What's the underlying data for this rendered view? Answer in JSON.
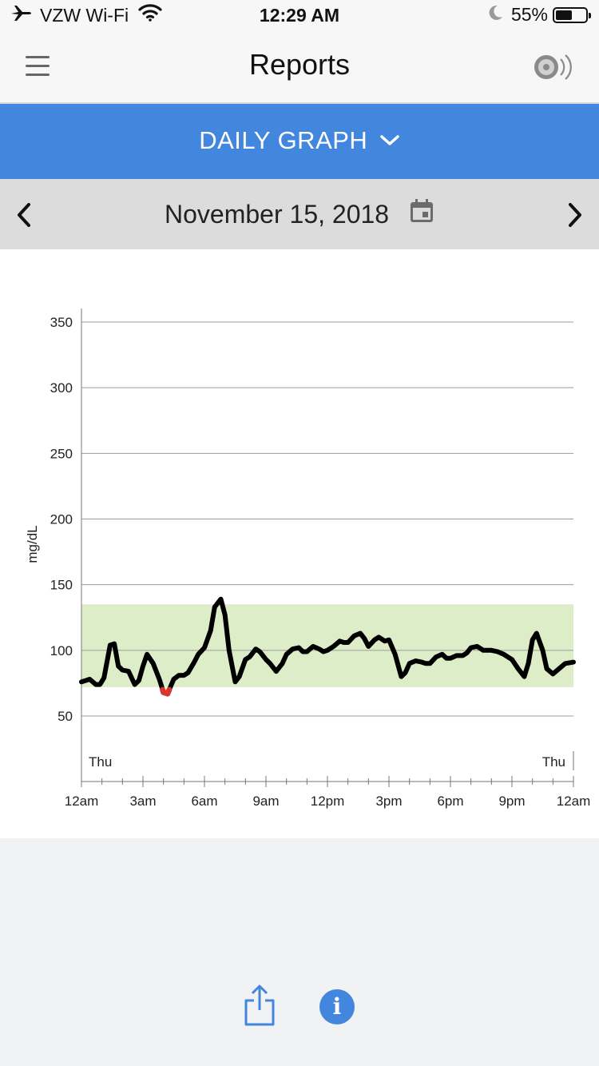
{
  "status_bar": {
    "carrier": "VZW Wi-Fi",
    "time": "12:29 AM",
    "battery": "55%",
    "battery_level": 0.55
  },
  "header": {
    "title": "Reports"
  },
  "mode": {
    "label": "DAILY GRAPH"
  },
  "date_nav": {
    "date": "November 15, 2018"
  },
  "colors": {
    "accent": "#4287dd",
    "target_range": "#dcedc8",
    "line": "#000000",
    "low": "#d9362b"
  },
  "icons": {
    "menu": "hamburger-icon",
    "sound": "speaker-icon",
    "calendar": "calendar-icon",
    "share": "share-icon",
    "info": "info-icon"
  },
  "chart_data": {
    "type": "line",
    "ylabel": "mg/dL",
    "xlabel": "",
    "yticks": [
      50,
      100,
      150,
      200,
      250,
      300,
      350
    ],
    "ylim": [
      0,
      360
    ],
    "xlim": [
      0,
      24
    ],
    "xticks": [
      "12am",
      "3am",
      "6am",
      "9am",
      "12pm",
      "3pm",
      "6pm",
      "9pm",
      "12am"
    ],
    "day_labels": [
      "Thu",
      "Thu"
    ],
    "target_range": [
      72,
      135
    ],
    "low_threshold": 70,
    "grid": true,
    "series": [
      {
        "x": [
          0,
          0.4,
          0.7,
          0.9,
          1.1,
          1.4,
          1.6,
          1.8,
          2.0,
          2.3,
          2.6,
          2.8,
          3.0,
          3.2,
          3.5,
          3.8,
          4.0,
          4.2,
          4.5,
          4.75,
          5.0,
          5.2,
          5.5,
          5.7,
          6.0,
          6.3,
          6.5,
          6.8,
          7.0,
          7.2,
          7.5,
          7.7,
          8.0,
          8.2,
          8.5,
          8.7,
          9.0,
          9.2,
          9.5,
          9.8,
          10.0,
          10.3,
          10.6,
          10.8,
          11.0,
          11.3,
          11.6,
          11.8,
          12.0,
          12.3,
          12.6,
          12.8,
          13.0,
          13.3,
          13.6,
          13.8,
          14.0,
          14.3,
          14.5,
          14.8,
          15.0,
          15.3,
          15.6,
          15.8,
          16.0,
          16.3,
          16.6,
          16.8,
          17.0,
          17.3,
          17.6,
          17.8,
          18.0,
          18.3,
          18.6,
          18.8,
          19.0,
          19.3,
          19.6,
          19.8,
          20.0,
          20.3,
          20.6,
          20.8,
          21.0,
          21.3,
          21.6,
          21.8,
          22.0,
          22.2,
          22.5,
          22.7,
          23.0,
          23.3,
          23.6,
          24.0
        ],
        "y": [
          76,
          78,
          74,
          74,
          79,
          104,
          105,
          88,
          85,
          84,
          74,
          77,
          88,
          97,
          90,
          78,
          68,
          67,
          78,
          81,
          81,
          83,
          91,
          97,
          102,
          115,
          133,
          139,
          127,
          100,
          76,
          80,
          93,
          95,
          101,
          99,
          93,
          90,
          84,
          90,
          97,
          101,
          102,
          99,
          99,
          103,
          101,
          99,
          100,
          103,
          107,
          106,
          106,
          111,
          113,
          109,
          103,
          108,
          110,
          107,
          108,
          97,
          80,
          83,
          90,
          92,
          91,
          90,
          90,
          95,
          97,
          94,
          94,
          96,
          96,
          98,
          102,
          103,
          100,
          100,
          100,
          99,
          97,
          95,
          93,
          86,
          80,
          90,
          108,
          113,
          100,
          86,
          82,
          86,
          90,
          91
        ]
      }
    ]
  }
}
